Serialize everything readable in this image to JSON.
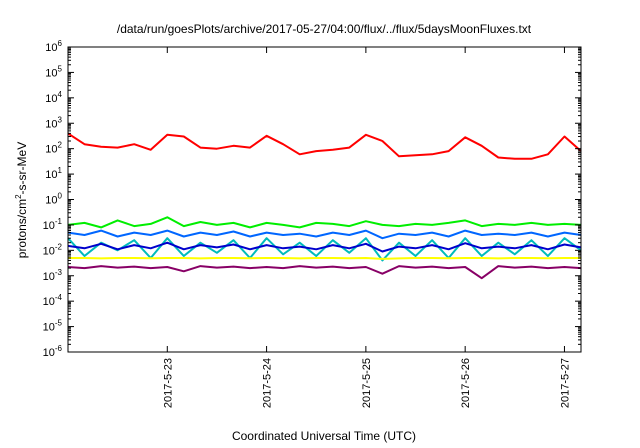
{
  "chart_data": {
    "type": "line",
    "title": "/data/run/goesPlots/archive/2017-05-27/04:00/flux/../flux/5daysMoonFluxes.txt",
    "xlabel": "Coordinated Universal Time (UTC)",
    "ylabel": {
      "base": "protons/cm",
      "sup": "2",
      "rest": "-s-sr-MeV"
    },
    "xscale": "date",
    "xlim": [
      "2017-05-22T00:00",
      "2017-05-27T04:00"
    ],
    "xticks": [
      {
        "value": "2017-05-23T00:00",
        "label": "2017-5-23"
      },
      {
        "value": "2017-05-24T00:00",
        "label": "2017-5-24"
      },
      {
        "value": "2017-05-25T00:00",
        "label": "2017-5-25"
      },
      {
        "value": "2017-05-26T00:00",
        "label": "2017-5-26"
      },
      {
        "value": "2017-05-27T00:00",
        "label": "2017-5-27"
      }
    ],
    "yscale": "log",
    "ylim": [
      1e-06,
      1000000.0
    ],
    "yticks": [
      {
        "value": 1e-06,
        "base": "10",
        "exp": "-6"
      },
      {
        "value": 1e-05,
        "base": "10",
        "exp": "-5"
      },
      {
        "value": 0.0001,
        "base": "10",
        "exp": "-4"
      },
      {
        "value": 0.001,
        "base": "10",
        "exp": "-3"
      },
      {
        "value": 0.01,
        "base": "10",
        "exp": "-2"
      },
      {
        "value": 0.1,
        "base": "10",
        "exp": "-1"
      },
      {
        "value": 1.0,
        "base": "10",
        "exp": "0"
      },
      {
        "value": 10.0,
        "base": "10",
        "exp": "1"
      },
      {
        "value": 100.0,
        "base": "10",
        "exp": "2"
      },
      {
        "value": 1000.0,
        "base": "10",
        "exp": "3"
      },
      {
        "value": 10000.0,
        "base": "10",
        "exp": "4"
      },
      {
        "value": 100000.0,
        "base": "10",
        "exp": "5"
      },
      {
        "value": 1000000.0,
        "base": "10",
        "exp": "6"
      }
    ],
    "grid": false,
    "series": [
      {
        "color": "#ff0000",
        "x": [
          "2017-05-22T00:00",
          "2017-05-22T04:00",
          "2017-05-22T08:00",
          "2017-05-22T12:00",
          "2017-05-22T16:00",
          "2017-05-22T20:00",
          "2017-05-23T00:00",
          "2017-05-23T04:00",
          "2017-05-23T08:00",
          "2017-05-23T12:00",
          "2017-05-23T16:00",
          "2017-05-23T20:00",
          "2017-05-24T00:00",
          "2017-05-24T04:00",
          "2017-05-24T08:00",
          "2017-05-24T12:00",
          "2017-05-24T16:00",
          "2017-05-24T20:00",
          "2017-05-25T00:00",
          "2017-05-25T04:00",
          "2017-05-25T08:00",
          "2017-05-25T12:00",
          "2017-05-25T16:00",
          "2017-05-25T20:00",
          "2017-05-26T00:00",
          "2017-05-26T04:00",
          "2017-05-26T08:00",
          "2017-05-26T12:00",
          "2017-05-26T16:00",
          "2017-05-26T20:00",
          "2017-05-27T00:00",
          "2017-05-27T04:00"
        ],
        "y": [
          400,
          150,
          120,
          110,
          150,
          90,
          350,
          300,
          110,
          100,
          130,
          110,
          320,
          150,
          60,
          80,
          90,
          110,
          350,
          200,
          50,
          55,
          60,
          80,
          280,
          130,
          45,
          40,
          40,
          60,
          300,
          80
        ]
      },
      {
        "color": "#00ee00",
        "x": [
          "2017-05-22T00:00",
          "2017-05-22T04:00",
          "2017-05-22T08:00",
          "2017-05-22T12:00",
          "2017-05-22T16:00",
          "2017-05-22T20:00",
          "2017-05-23T00:00",
          "2017-05-23T04:00",
          "2017-05-23T08:00",
          "2017-05-23T12:00",
          "2017-05-23T16:00",
          "2017-05-23T20:00",
          "2017-05-24T00:00",
          "2017-05-24T04:00",
          "2017-05-24T08:00",
          "2017-05-24T12:00",
          "2017-05-24T16:00",
          "2017-05-24T20:00",
          "2017-05-25T00:00",
          "2017-05-25T04:00",
          "2017-05-25T08:00",
          "2017-05-25T12:00",
          "2017-05-25T16:00",
          "2017-05-25T20:00",
          "2017-05-26T00:00",
          "2017-05-26T04:00",
          "2017-05-26T08:00",
          "2017-05-26T12:00",
          "2017-05-26T16:00",
          "2017-05-26T20:00",
          "2017-05-27T00:00",
          "2017-05-27T04:00"
        ],
        "y": [
          0.1,
          0.12,
          0.08,
          0.15,
          0.09,
          0.11,
          0.2,
          0.09,
          0.13,
          0.1,
          0.12,
          0.08,
          0.12,
          0.1,
          0.08,
          0.12,
          0.11,
          0.09,
          0.14,
          0.1,
          0.09,
          0.11,
          0.1,
          0.12,
          0.15,
          0.09,
          0.11,
          0.1,
          0.12,
          0.1,
          0.11,
          0.1
        ]
      },
      {
        "color": "#00bbbb",
        "x": [
          "2017-05-22T00:00",
          "2017-05-22T04:00",
          "2017-05-22T08:00",
          "2017-05-22T12:00",
          "2017-05-22T16:00",
          "2017-05-22T20:00",
          "2017-05-23T00:00",
          "2017-05-23T04:00",
          "2017-05-23T08:00",
          "2017-05-23T12:00",
          "2017-05-23T16:00",
          "2017-05-23T20:00",
          "2017-05-24T00:00",
          "2017-05-24T04:00",
          "2017-05-24T08:00",
          "2017-05-24T12:00",
          "2017-05-24T16:00",
          "2017-05-24T20:00",
          "2017-05-25T00:00",
          "2017-05-25T04:00",
          "2017-05-25T08:00",
          "2017-05-25T12:00",
          "2017-05-25T16:00",
          "2017-05-25T20:00",
          "2017-05-26T00:00",
          "2017-05-26T04:00",
          "2017-05-26T08:00",
          "2017-05-26T12:00",
          "2017-05-26T16:00",
          "2017-05-26T20:00",
          "2017-05-27T00:00",
          "2017-05-27T04:00"
        ],
        "y": [
          0.03,
          0.006,
          0.02,
          0.01,
          0.025,
          0.005,
          0.03,
          0.006,
          0.02,
          0.008,
          0.025,
          0.005,
          0.03,
          0.007,
          0.02,
          0.006,
          0.025,
          0.008,
          0.03,
          0.004,
          0.02,
          0.006,
          0.025,
          0.005,
          0.03,
          0.006,
          0.02,
          0.007,
          0.025,
          0.006,
          0.03,
          0.01
        ]
      },
      {
        "color": "#0066ff",
        "x": [
          "2017-05-22T00:00",
          "2017-05-22T04:00",
          "2017-05-22T08:00",
          "2017-05-22T12:00",
          "2017-05-22T16:00",
          "2017-05-22T20:00",
          "2017-05-23T00:00",
          "2017-05-23T04:00",
          "2017-05-23T08:00",
          "2017-05-23T12:00",
          "2017-05-23T16:00",
          "2017-05-23T20:00",
          "2017-05-24T00:00",
          "2017-05-24T04:00",
          "2017-05-24T08:00",
          "2017-05-24T12:00",
          "2017-05-24T16:00",
          "2017-05-24T20:00",
          "2017-05-25T00:00",
          "2017-05-25T04:00",
          "2017-05-25T08:00",
          "2017-05-25T12:00",
          "2017-05-25T16:00",
          "2017-05-25T20:00",
          "2017-05-26T00:00",
          "2017-05-26T04:00",
          "2017-05-26T08:00",
          "2017-05-26T12:00",
          "2017-05-26T16:00",
          "2017-05-26T20:00",
          "2017-05-27T00:00",
          "2017-05-27T04:00"
        ],
        "y": [
          0.05,
          0.04,
          0.06,
          0.035,
          0.05,
          0.04,
          0.06,
          0.035,
          0.05,
          0.04,
          0.055,
          0.035,
          0.05,
          0.04,
          0.045,
          0.035,
          0.05,
          0.04,
          0.06,
          0.03,
          0.045,
          0.04,
          0.05,
          0.035,
          0.06,
          0.04,
          0.045,
          0.04,
          0.05,
          0.035,
          0.05,
          0.04
        ]
      },
      {
        "color": "#0000cc",
        "x": [
          "2017-05-22T00:00",
          "2017-05-22T04:00",
          "2017-05-22T08:00",
          "2017-05-22T12:00",
          "2017-05-22T16:00",
          "2017-05-22T20:00",
          "2017-05-23T00:00",
          "2017-05-23T04:00",
          "2017-05-23T08:00",
          "2017-05-23T12:00",
          "2017-05-23T16:00",
          "2017-05-23T20:00",
          "2017-05-24T00:00",
          "2017-05-24T04:00",
          "2017-05-24T08:00",
          "2017-05-24T12:00",
          "2017-05-24T16:00",
          "2017-05-24T20:00",
          "2017-05-25T00:00",
          "2017-05-25T04:00",
          "2017-05-25T08:00",
          "2017-05-25T12:00",
          "2017-05-25T16:00",
          "2017-05-25T20:00",
          "2017-05-26T00:00",
          "2017-05-26T04:00",
          "2017-05-26T08:00",
          "2017-05-26T12:00",
          "2017-05-26T16:00",
          "2017-05-26T20:00",
          "2017-05-27T00:00",
          "2017-05-27T04:00"
        ],
        "y": [
          0.015,
          0.012,
          0.018,
          0.011,
          0.016,
          0.012,
          0.02,
          0.011,
          0.016,
          0.013,
          0.017,
          0.011,
          0.016,
          0.012,
          0.014,
          0.011,
          0.016,
          0.012,
          0.018,
          0.009,
          0.014,
          0.012,
          0.016,
          0.011,
          0.019,
          0.012,
          0.014,
          0.012,
          0.016,
          0.011,
          0.017,
          0.013
        ]
      },
      {
        "color": "#ffff00",
        "x": [
          "2017-05-22T00:00",
          "2017-05-22T04:00",
          "2017-05-22T08:00",
          "2017-05-22T12:00",
          "2017-05-22T16:00",
          "2017-05-22T20:00",
          "2017-05-23T00:00",
          "2017-05-23T04:00",
          "2017-05-23T08:00",
          "2017-05-23T12:00",
          "2017-05-23T16:00",
          "2017-05-23T20:00",
          "2017-05-24T00:00",
          "2017-05-24T04:00",
          "2017-05-24T08:00",
          "2017-05-24T12:00",
          "2017-05-24T16:00",
          "2017-05-24T20:00",
          "2017-05-25T00:00",
          "2017-05-25T04:00",
          "2017-05-25T08:00",
          "2017-05-25T12:00",
          "2017-05-25T16:00",
          "2017-05-25T20:00",
          "2017-05-26T00:00",
          "2017-05-26T04:00",
          "2017-05-26T08:00",
          "2017-05-26T12:00",
          "2017-05-26T16:00",
          "2017-05-26T20:00",
          "2017-05-27T00:00",
          "2017-05-27T04:00"
        ],
        "y": [
          0.005,
          0.005,
          0.0048,
          0.005,
          0.005,
          0.0049,
          0.005,
          0.005,
          0.0048,
          0.005,
          0.005,
          0.0049,
          0.005,
          0.005,
          0.0048,
          0.005,
          0.005,
          0.0049,
          0.005,
          0.0046,
          0.0048,
          0.005,
          0.005,
          0.0049,
          0.005,
          0.005,
          0.0048,
          0.005,
          0.005,
          0.0049,
          0.005,
          0.005
        ]
      },
      {
        "color": "#880066",
        "x": [
          "2017-05-22T00:00",
          "2017-05-22T04:00",
          "2017-05-22T08:00",
          "2017-05-22T12:00",
          "2017-05-22T16:00",
          "2017-05-22T20:00",
          "2017-05-23T00:00",
          "2017-05-23T04:00",
          "2017-05-23T08:00",
          "2017-05-23T12:00",
          "2017-05-23T16:00",
          "2017-05-23T20:00",
          "2017-05-24T00:00",
          "2017-05-24T04:00",
          "2017-05-24T08:00",
          "2017-05-24T12:00",
          "2017-05-24T16:00",
          "2017-05-24T20:00",
          "2017-05-25T00:00",
          "2017-05-25T04:00",
          "2017-05-25T08:00",
          "2017-05-25T12:00",
          "2017-05-25T16:00",
          "2017-05-25T20:00",
          "2017-05-26T00:00",
          "2017-05-26T04:00",
          "2017-05-26T08:00",
          "2017-05-26T12:00",
          "2017-05-26T16:00",
          "2017-05-26T20:00",
          "2017-05-27T00:00",
          "2017-05-27T04:00"
        ],
        "y": [
          0.0022,
          0.002,
          0.0024,
          0.0021,
          0.0023,
          0.002,
          0.0022,
          0.0015,
          0.0024,
          0.0021,
          0.0023,
          0.002,
          0.0022,
          0.002,
          0.0024,
          0.0021,
          0.0023,
          0.002,
          0.0022,
          0.0012,
          0.0024,
          0.0021,
          0.0023,
          0.002,
          0.0022,
          0.0008,
          0.0024,
          0.0021,
          0.0023,
          0.002,
          0.0022,
          0.002
        ]
      }
    ]
  }
}
